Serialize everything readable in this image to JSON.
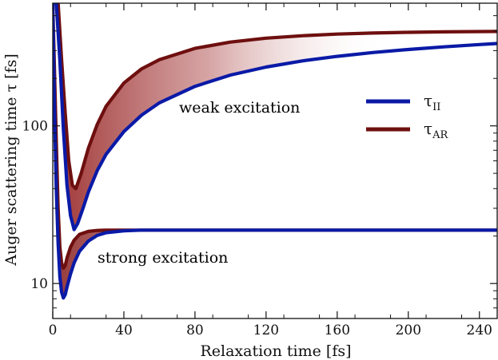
{
  "chart_data": {
    "type": "line",
    "title": "",
    "xlabel": "Relaxation time [fs]",
    "ylabel": "Auger scattering time τ  [fs]",
    "xlim": [
      0,
      250
    ],
    "ylim": [
      6,
      600
    ],
    "yscale": "log",
    "x_ticks": [
      0,
      40,
      80,
      120,
      160,
      200,
      240
    ],
    "y_ticks": [
      10,
      100
    ],
    "grid": false,
    "legend_position": "right",
    "legend": [
      {
        "symbol": "τ",
        "sub": "II",
        "color": "#0a1aa6"
      },
      {
        "symbol": "τ",
        "sub": "AR",
        "color": "#6e0f0f"
      }
    ],
    "annotations": [
      {
        "text": "weak excitation",
        "color": "#b01818"
      },
      {
        "text": "strong excitation",
        "color": "#b01818"
      }
    ],
    "series": [
      {
        "name": "τ_II",
        "group": "weak excitation",
        "color": "#0a1aa6",
        "x": [
          0,
          2,
          4,
          6,
          8,
          10,
          12,
          14,
          17,
          20,
          25,
          30,
          40,
          50,
          60,
          80,
          100,
          120,
          140,
          160,
          180,
          200,
          220,
          240,
          250
        ],
        "y": [
          600,
          600,
          260,
          95,
          42,
          27,
          22,
          24,
          30,
          38,
          52,
          66,
          92,
          117,
          140,
          178,
          210,
          236,
          258,
          276,
          292,
          305,
          317,
          328,
          333
        ]
      },
      {
        "name": "τ_AR",
        "group": "weak excitation",
        "color": "#6e0f0f",
        "x": [
          0,
          3,
          5,
          7,
          9,
          11,
          13,
          16,
          20,
          25,
          30,
          40,
          50,
          60,
          80,
          100,
          120,
          140,
          160,
          180,
          200,
          220,
          250
        ],
        "y": [
          600,
          600,
          260,
          120,
          60,
          42,
          40,
          50,
          72,
          102,
          133,
          187,
          230,
          263,
          310,
          340,
          360,
          373,
          382,
          388,
          392,
          395,
          397
        ]
      },
      {
        "name": "τ_II",
        "group": "strong excitation",
        "color": "#0a1aa6",
        "x": [
          0,
          1,
          2,
          3,
          4,
          5,
          6,
          7,
          8,
          10,
          12,
          15,
          20,
          25,
          30,
          40,
          50,
          60,
          100,
          150,
          200,
          250
        ],
        "y": [
          600,
          120,
          40,
          18,
          11,
          8.8,
          8.1,
          8.5,
          9.5,
          11.5,
          13.5,
          16,
          18.6,
          20.2,
          21,
          21.6,
          21.8,
          21.8,
          21.8,
          21.8,
          21.8,
          21.8
        ]
      },
      {
        "name": "τ_AR",
        "group": "strong excitation",
        "color": "#6e0f0f",
        "x": [
          0,
          2,
          3,
          4,
          5,
          6,
          7,
          8,
          10,
          12,
          15,
          20,
          25,
          30,
          40,
          60,
          100,
          250
        ],
        "y": [
          600,
          80,
          30,
          17,
          13.5,
          12.5,
          13,
          14.5,
          17,
          18.8,
          20.5,
          21.4,
          21.7,
          21.8,
          21.8,
          21.8,
          21.8,
          21.8
        ]
      }
    ]
  }
}
